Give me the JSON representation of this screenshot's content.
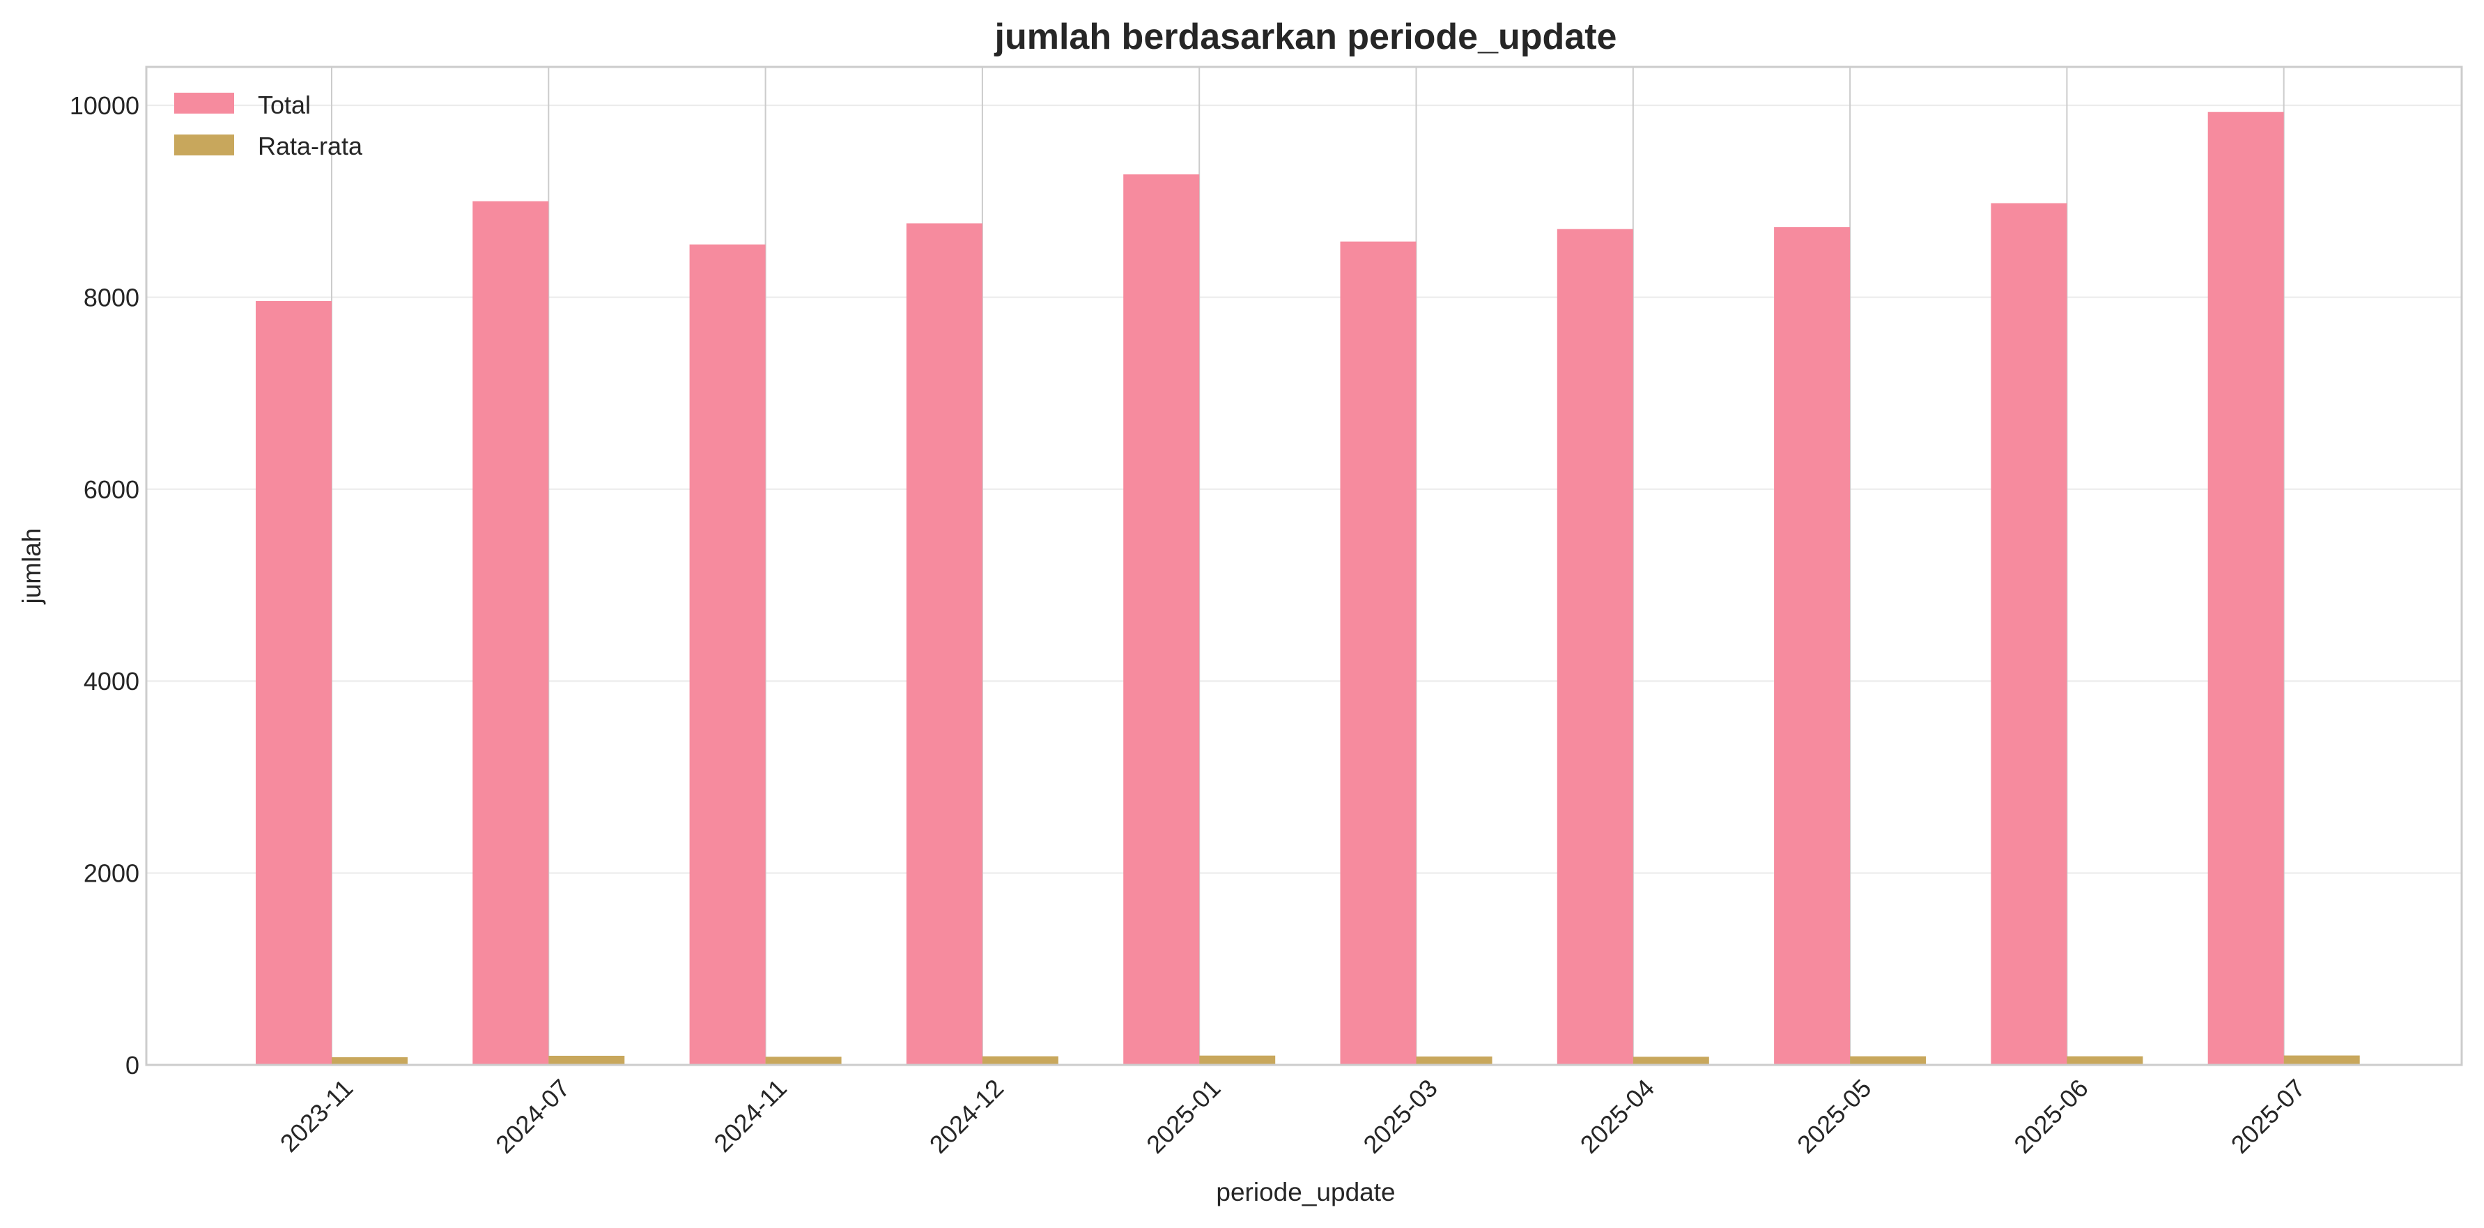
{
  "chart_data": {
    "type": "bar",
    "title": "jumlah berdasarkan periode_update",
    "xlabel": "periode_update",
    "ylabel": "jumlah",
    "categories": [
      "2023-11",
      "2024-07",
      "2024-11",
      "2024-12",
      "2025-01",
      "2025-03",
      "2025-04",
      "2025-05",
      "2025-06",
      "2025-07"
    ],
    "series": [
      {
        "name": "Total",
        "color": "#f68b9e",
        "values": [
          7960,
          9000,
          8550,
          8770,
          9280,
          8580,
          8710,
          8730,
          8980,
          9930
        ]
      },
      {
        "name": "Rata-rata",
        "color": "#c8a75c",
        "values": [
          80,
          95,
          85,
          90,
          97,
          88,
          85,
          90,
          90,
          98
        ]
      }
    ],
    "ylim": [
      0,
      10400
    ],
    "yticks": [
      0,
      2000,
      4000,
      6000,
      8000,
      10000
    ],
    "grid": true,
    "legend_position": "top-left"
  }
}
